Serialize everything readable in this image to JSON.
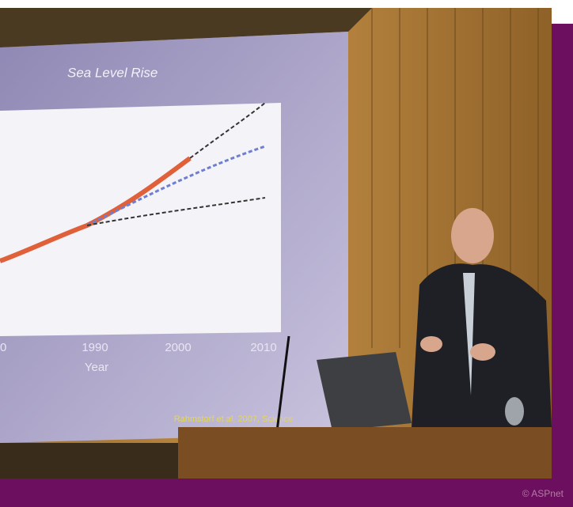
{
  "photo": {
    "slide": {
      "title": "Sea Level Rise",
      "x_tick_labels": [
        "0",
        "1990",
        "2000",
        "2010"
      ],
      "x_label": "Year",
      "citation": "Rahmstorf et al. 2007, Science"
    },
    "credit": "© ASPnet"
  }
}
